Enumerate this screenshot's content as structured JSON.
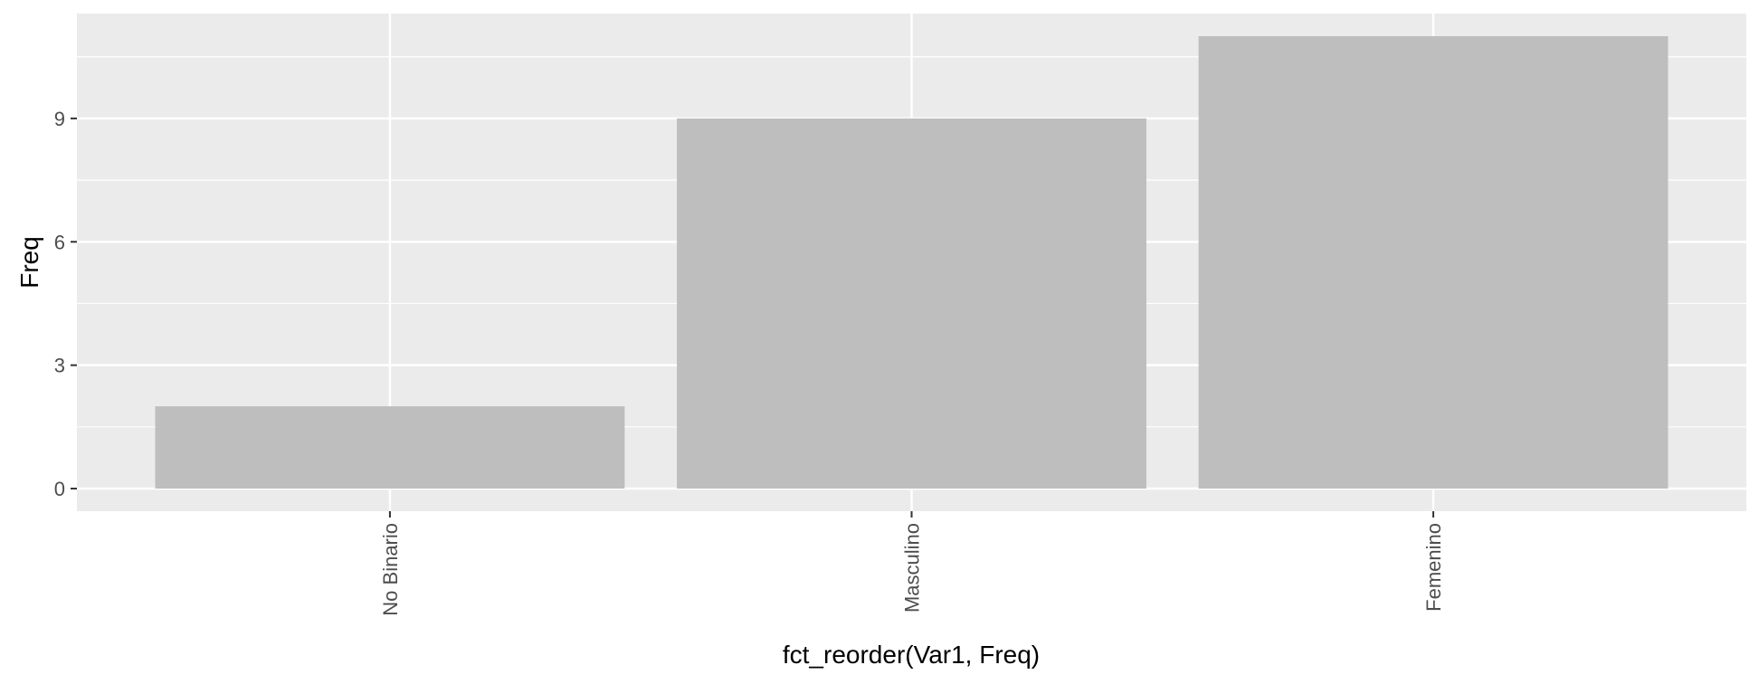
{
  "chart_data": {
    "type": "bar",
    "title": "",
    "xlabel": "fct_reorder(Var1, Freq)",
    "ylabel": "Freq",
    "categories": [
      "No Binario",
      "Masculino",
      "Femenino"
    ],
    "values": [
      2,
      9,
      11
    ],
    "ylim": [
      -0.55,
      11.55
    ],
    "y_ticks": [
      0,
      3,
      6,
      9
    ],
    "y_tick_labels": [
      "0",
      "3",
      "6",
      "9"
    ],
    "grid": true,
    "legend": "none",
    "bar_color": "#bebebe",
    "panel_color": "#ebebeb",
    "grid_color": "#ffffff"
  }
}
